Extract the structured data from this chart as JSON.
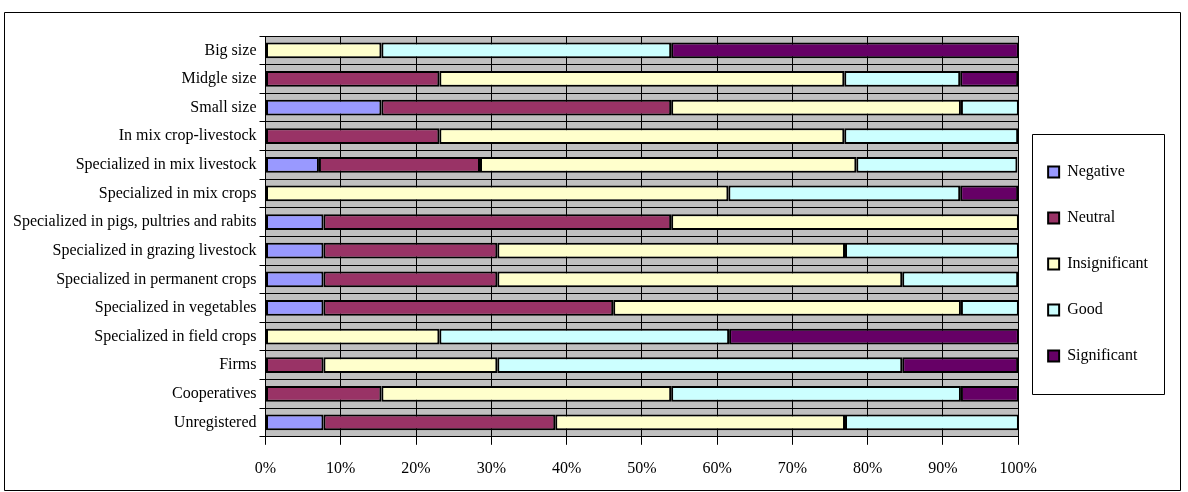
{
  "chart_data": {
    "type": "bar",
    "orientation": "horizontal",
    "stacked": true,
    "grid": true,
    "legend": "right",
    "categories": [
      "Big size",
      "Midgle size",
      "Small size",
      "In mix crop-livestock",
      "Specialized in mix livestock",
      "Specialized in mix crops",
      "Specialized in pigs, pultries and rabits",
      "Specialized in grazing livestock",
      "Specialized in permanent crops",
      "Specialized in vegetables",
      "Specialized in field crops",
      "Firms",
      "Cooperatives",
      "Unregistered"
    ],
    "series": [
      {
        "name": "Negative",
        "color": "#9999ff",
        "values": [
          0,
          0,
          15.4,
          0,
          7.1,
          0,
          7.7,
          7.7,
          7.7,
          7.7,
          0,
          0,
          0,
          7.7
        ]
      },
      {
        "name": "Neutral",
        "color": "#993366",
        "values": [
          0,
          23.1,
          38.5,
          23.1,
          21.4,
          0,
          46.2,
          23.1,
          23.1,
          38.5,
          0,
          7.7,
          15.4,
          30.8
        ]
      },
      {
        "name": "Insignificant",
        "color": "#ffffcc",
        "values": [
          15.4,
          53.8,
          38.5,
          53.8,
          50,
          61.5,
          46.2,
          46.2,
          53.8,
          46.2,
          23.1,
          23.1,
          38.5,
          38.5
        ]
      },
      {
        "name": "Good",
        "color": "#ccffff",
        "values": [
          38.5,
          15.4,
          7.7,
          23.1,
          21.4,
          30.8,
          0,
          23.1,
          15.4,
          7.7,
          38.5,
          53.8,
          38.5,
          23.1
        ]
      },
      {
        "name": "Significant",
        "color": "#660066",
        "values": [
          46.2,
          7.7,
          0,
          0,
          0,
          7.7,
          0,
          0,
          0,
          0,
          38.5,
          15.4,
          7.7,
          0
        ]
      }
    ],
    "xlim": [
      0,
      100
    ],
    "xticks": [
      {
        "value": 0,
        "label": "0%"
      },
      {
        "value": 10,
        "label": "10%"
      },
      {
        "value": 20,
        "label": "20%"
      },
      {
        "value": 30,
        "label": "30%"
      },
      {
        "value": 40,
        "label": "40%"
      },
      {
        "value": 50,
        "label": "50%"
      },
      {
        "value": 60,
        "label": "60%"
      },
      {
        "value": 70,
        "label": "70%"
      },
      {
        "value": 80,
        "label": "80%"
      },
      {
        "value": 90,
        "label": "90%"
      },
      {
        "value": 100,
        "label": "100%"
      }
    ]
  }
}
